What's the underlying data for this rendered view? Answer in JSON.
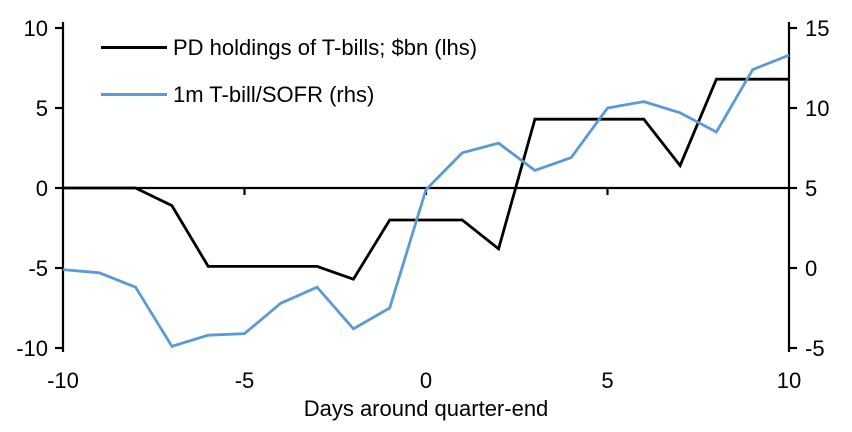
{
  "chart_data": {
    "type": "line",
    "title": "",
    "background": "#ffffff",
    "grid": false,
    "legend_position": "top-left",
    "x_axis": {
      "label": "Days around quarter-end",
      "range": [
        -10,
        10
      ],
      "tick_values": [
        -10,
        -5,
        0,
        5,
        10
      ],
      "tick_labels": [
        "-10",
        "-5",
        "0",
        "5",
        "10"
      ],
      "tick_marks_on_zero_line": [
        -5,
        0,
        5
      ]
    },
    "left_axis": {
      "range": [
        -10,
        10
      ],
      "tick_values": [
        10,
        5,
        0,
        -5,
        -10
      ],
      "tick_labels": [
        "10",
        "5",
        "0",
        "-5",
        "-10"
      ]
    },
    "right_axis": {
      "range": [
        -5,
        15
      ],
      "tick_values": [
        15,
        10,
        5,
        0,
        -5
      ],
      "tick_labels": [
        "15",
        "10",
        "5",
        "0",
        "-5"
      ]
    },
    "x": [
      -10,
      -9,
      -8,
      -7,
      -6,
      -5,
      -4,
      -3,
      -2,
      -1,
      0,
      1,
      2,
      3,
      4,
      5,
      6,
      7,
      8,
      9,
      10
    ],
    "series": [
      {
        "name": "PD holdings of T-bills; $bn (lhs)",
        "axis": "left",
        "color": "#000000",
        "values": [
          0,
          0,
          0,
          -1.1,
          -4.9,
          -4.9,
          -4.9,
          -4.9,
          -5.7,
          -2.0,
          -2.0,
          -2.0,
          -3.8,
          4.3,
          4.3,
          4.3,
          4.3,
          1.4,
          6.8,
          6.8,
          6.8
        ]
      },
      {
        "name": "1m T-bill/SOFR (rhs)",
        "axis": "right",
        "color": "#5b9bd5",
        "values": [
          -0.1,
          -0.3,
          -1.2,
          -4.9,
          -4.2,
          -4.1,
          -2.2,
          -1.2,
          -3.8,
          -2.5,
          4.9,
          7.2,
          7.8,
          6.1,
          6.9,
          10.0,
          10.4,
          9.7,
          8.5,
          12.4,
          13.3
        ]
      }
    ]
  }
}
